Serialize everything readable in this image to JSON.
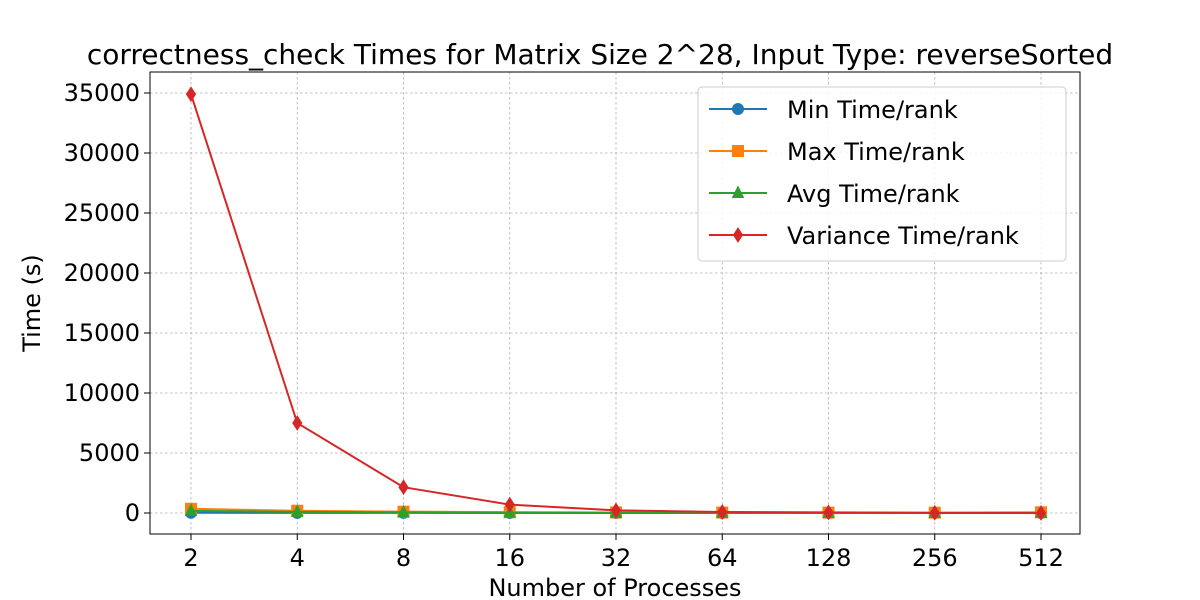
{
  "chart_data": {
    "type": "line",
    "title": "correctness_check Times for Matrix Size 2^28, Input Type: reverseSorted",
    "xlabel": "Number of Processes",
    "ylabel": "Time (s)",
    "categories": [
      "2",
      "4",
      "8",
      "16",
      "32",
      "64",
      "128",
      "256",
      "512"
    ],
    "x": [
      2,
      4,
      8,
      16,
      32,
      64,
      128,
      256,
      512
    ],
    "x_scale": "log2",
    "ylim": [
      -1750,
      36750
    ],
    "yticks": [
      0,
      5000,
      10000,
      15000,
      20000,
      25000,
      30000,
      35000
    ],
    "grid": true,
    "legend_position": "top-right",
    "series": [
      {
        "name": "Min Time/rank",
        "color": "#1f77b4",
        "marker": "circle",
        "values": [
          18,
          12,
          6,
          4,
          3,
          2,
          1.5,
          1,
          1
        ]
      },
      {
        "name": "Max Time/rank",
        "color": "#ff7f0e",
        "marker": "square",
        "values": [
          350,
          190,
          110,
          70,
          45,
          35,
          30,
          28,
          60
        ]
      },
      {
        "name": "Avg Time/rank",
        "color": "#2ca02c",
        "marker": "triangle",
        "values": [
          180,
          95,
          50,
          25,
          15,
          10,
          7,
          5,
          4
        ]
      },
      {
        "name": "Variance Time/rank",
        "color": "#d62728",
        "marker": "diamond",
        "values": [
          34900,
          7500,
          2150,
          700,
          220,
          85,
          50,
          15,
          5
        ]
      }
    ]
  }
}
